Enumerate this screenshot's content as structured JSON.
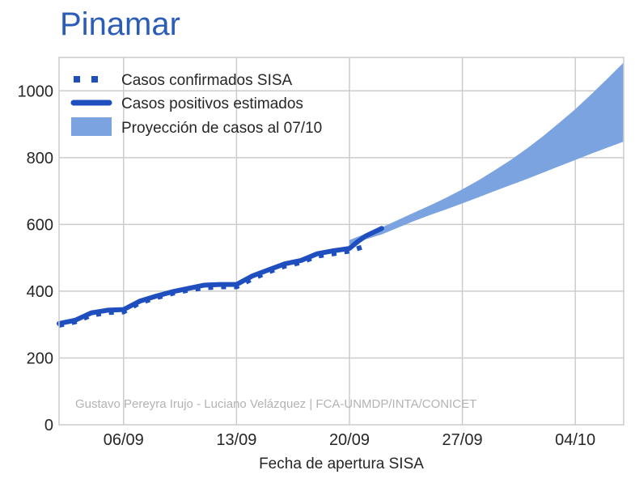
{
  "title": "Pinamar",
  "chart_data": {
    "type": "line",
    "title": "Pinamar",
    "xlabel": "Fecha de apertura SISA",
    "ylabel": "",
    "x_ticks": [
      {
        "day": 6,
        "label": "06/09"
      },
      {
        "day": 13,
        "label": "13/09"
      },
      {
        "day": 20,
        "label": "20/09"
      },
      {
        "day": 27,
        "label": "27/09"
      },
      {
        "day": 34,
        "label": "04/10"
      }
    ],
    "y_ticks": [
      0,
      200,
      400,
      600,
      800,
      1000
    ],
    "xlim": [
      2,
      37
    ],
    "ylim": [
      0,
      1100
    ],
    "grid": true,
    "legend_position": "top-left",
    "colors": {
      "title": "#2a5cb8",
      "confirmed": "#1f4fbf",
      "estimated": "#1f4fbf",
      "projection": "#7aa3e0"
    },
    "series": [
      {
        "name": "Casos confirmados SISA",
        "style": "dotted",
        "x": [
          2,
          3,
          4,
          5,
          6,
          7,
          8,
          9,
          10,
          11,
          12,
          13,
          14,
          15,
          16,
          17,
          18,
          19,
          20,
          21
        ],
        "y": [
          298,
          308,
          328,
          336,
          338,
          365,
          380,
          393,
          403,
          410,
          413,
          413,
          437,
          458,
          475,
          486,
          505,
          512,
          520,
          535
        ]
      },
      {
        "name": "Casos positivos estimados",
        "style": "solid",
        "x": [
          2,
          3,
          4,
          5,
          6,
          7,
          8,
          9,
          10,
          11,
          12,
          13,
          14,
          15,
          16,
          17,
          18,
          19,
          20,
          20.5,
          21,
          22
        ],
        "y": [
          303,
          313,
          335,
          343,
          345,
          370,
          385,
          398,
          408,
          418,
          420,
          420,
          446,
          464,
          482,
          492,
          512,
          521,
          528,
          548,
          565,
          588
        ]
      },
      {
        "name": "Proyección de casos al 07/10",
        "style": "band",
        "x": [
          20,
          21,
          22,
          23,
          24,
          25,
          26,
          27,
          28,
          29,
          30,
          31,
          32,
          33,
          34,
          35,
          36,
          37
        ],
        "lower": [
          540,
          555,
          570,
          590,
          610,
          628,
          645,
          663,
          681,
          700,
          718,
          736,
          755,
          774,
          793,
          812,
          830,
          848
        ],
        "upper": [
          553,
          572,
          591,
          613,
          635,
          657,
          680,
          705,
          732,
          762,
          793,
          827,
          864,
          904,
          945,
          990,
          1037,
          1085
        ]
      }
    ],
    "credit": "Gustavo Pereyra Irujo - Luciano Velázquez | FCA-UNMDP/INTA/CONICET"
  }
}
